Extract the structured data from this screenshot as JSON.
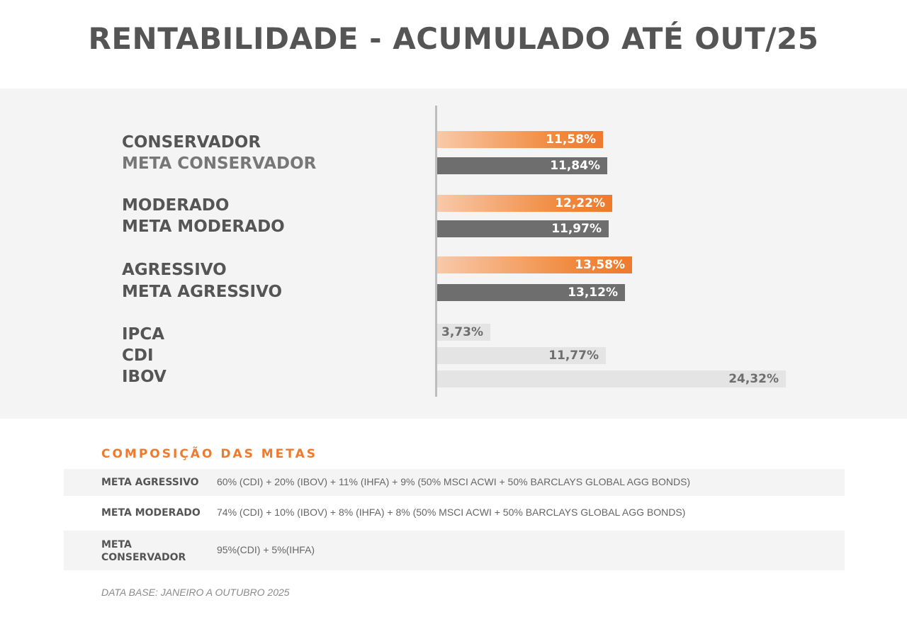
{
  "title": "RENTABILIDADE - ACUMULADO ATÉ OUT/25",
  "chart_data": {
    "type": "bar",
    "orientation": "horizontal",
    "title": "RENTABILIDADE - ACUMULADO ATÉ OUT/25",
    "unit": "%",
    "groups": [
      {
        "labels": [
          "CONSERVADOR",
          "META CONSERVADOR"
        ],
        "values": [
          11.58,
          11.84
        ],
        "value_labels": [
          "11,58%",
          "11,84%"
        ],
        "styles": [
          "orange",
          "dark"
        ]
      },
      {
        "labels": [
          "MODERADO",
          "META MODERADO"
        ],
        "values": [
          12.22,
          11.97
        ],
        "value_labels": [
          "12,22%",
          "11,97%"
        ],
        "styles": [
          "orange",
          "dark"
        ]
      },
      {
        "labels": [
          "AGRESSIVO",
          "META AGRESSIVO"
        ],
        "values": [
          13.58,
          13.12
        ],
        "value_labels": [
          "13,58%",
          "13,12%"
        ],
        "styles": [
          "orange",
          "dark"
        ]
      },
      {
        "labels": [
          "IPCA",
          "CDI",
          "IBOV"
        ],
        "values": [
          3.73,
          11.77,
          24.32
        ],
        "value_labels": [
          "3,73%",
          "11,77%",
          "24,32%"
        ],
        "styles": [
          "light",
          "light",
          "light"
        ]
      }
    ],
    "colors": {
      "portfolio": "#ee7a2e",
      "meta": "#6e6e6e",
      "benchmark": "#e4e4e4"
    }
  },
  "composition": {
    "title": "COMPOSIÇÃO DAS METAS",
    "rows": [
      {
        "name": "META AGRESSIVO",
        "desc": "60% (CDI) + 20% (IBOV) + 11% (IHFA) + 9% (50% MSCI ACWI + 50% BARCLAYS GLOBAL AGG BONDS)"
      },
      {
        "name": "META MODERADO",
        "desc": "74% (CDI) + 10% (IBOV) + 8% (IHFA) + 8% (50% MSCI ACWI + 50% BARCLAYS GLOBAL AGG BONDS)"
      },
      {
        "name": "META CONSERVADOR",
        "desc": "95%(CDI) + 5%(IHFA)"
      }
    ]
  },
  "footnote": "DATA BASE: JANEIRO A OUTUBRO 2025"
}
